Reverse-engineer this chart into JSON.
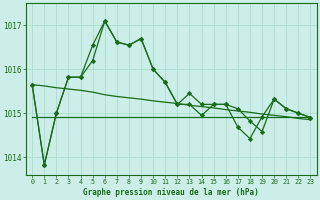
{
  "title": "Graphe pression niveau de la mer (hPa)",
  "bg_color": "#cceee8",
  "grid_color": "#aaddcc",
  "line_color": "#1a6b1a",
  "ylim": [
    1013.6,
    1017.5
  ],
  "yticks": [
    1014,
    1015,
    1016,
    1017
  ],
  "xlim": [
    -0.5,
    23.5
  ],
  "series1": [
    1015.65,
    1013.82,
    1015.0,
    1015.82,
    1015.82,
    1016.55,
    1017.1,
    1016.62,
    1016.55,
    1016.7,
    1016.0,
    1015.7,
    1015.2,
    1015.2,
    1014.95,
    1015.2,
    1015.2,
    1015.1,
    1014.82,
    1014.58,
    1015.32,
    1015.1,
    1015.0,
    1014.9
  ],
  "series2": [
    1014.92,
    1014.92,
    1014.92,
    1014.92,
    1014.92,
    1014.92,
    1014.92,
    1014.92,
    1014.92,
    1014.92,
    1014.92,
    1014.92,
    1014.92,
    1014.92,
    1014.92,
    1014.92,
    1014.92,
    1014.92,
    1014.92,
    1014.92,
    1014.92,
    1014.92,
    1014.92,
    1014.92
  ],
  "series3": [
    1015.65,
    1015.62,
    1015.58,
    1015.55,
    1015.52,
    1015.48,
    1015.42,
    1015.38,
    1015.35,
    1015.32,
    1015.28,
    1015.25,
    1015.22,
    1015.18,
    1015.15,
    1015.12,
    1015.08,
    1015.05,
    1015.02,
    1014.98,
    1014.95,
    1014.92,
    1014.88,
    1014.85
  ],
  "series4": [
    1015.65,
    1013.82,
    1015.0,
    1015.82,
    1015.82,
    1016.2,
    1017.1,
    1016.62,
    1016.55,
    1016.7,
    1016.0,
    1015.7,
    1015.2,
    1015.45,
    1015.2,
    1015.2,
    1015.2,
    1014.68,
    1014.42,
    1014.92,
    1015.32,
    1015.1,
    1015.0,
    1014.9
  ]
}
